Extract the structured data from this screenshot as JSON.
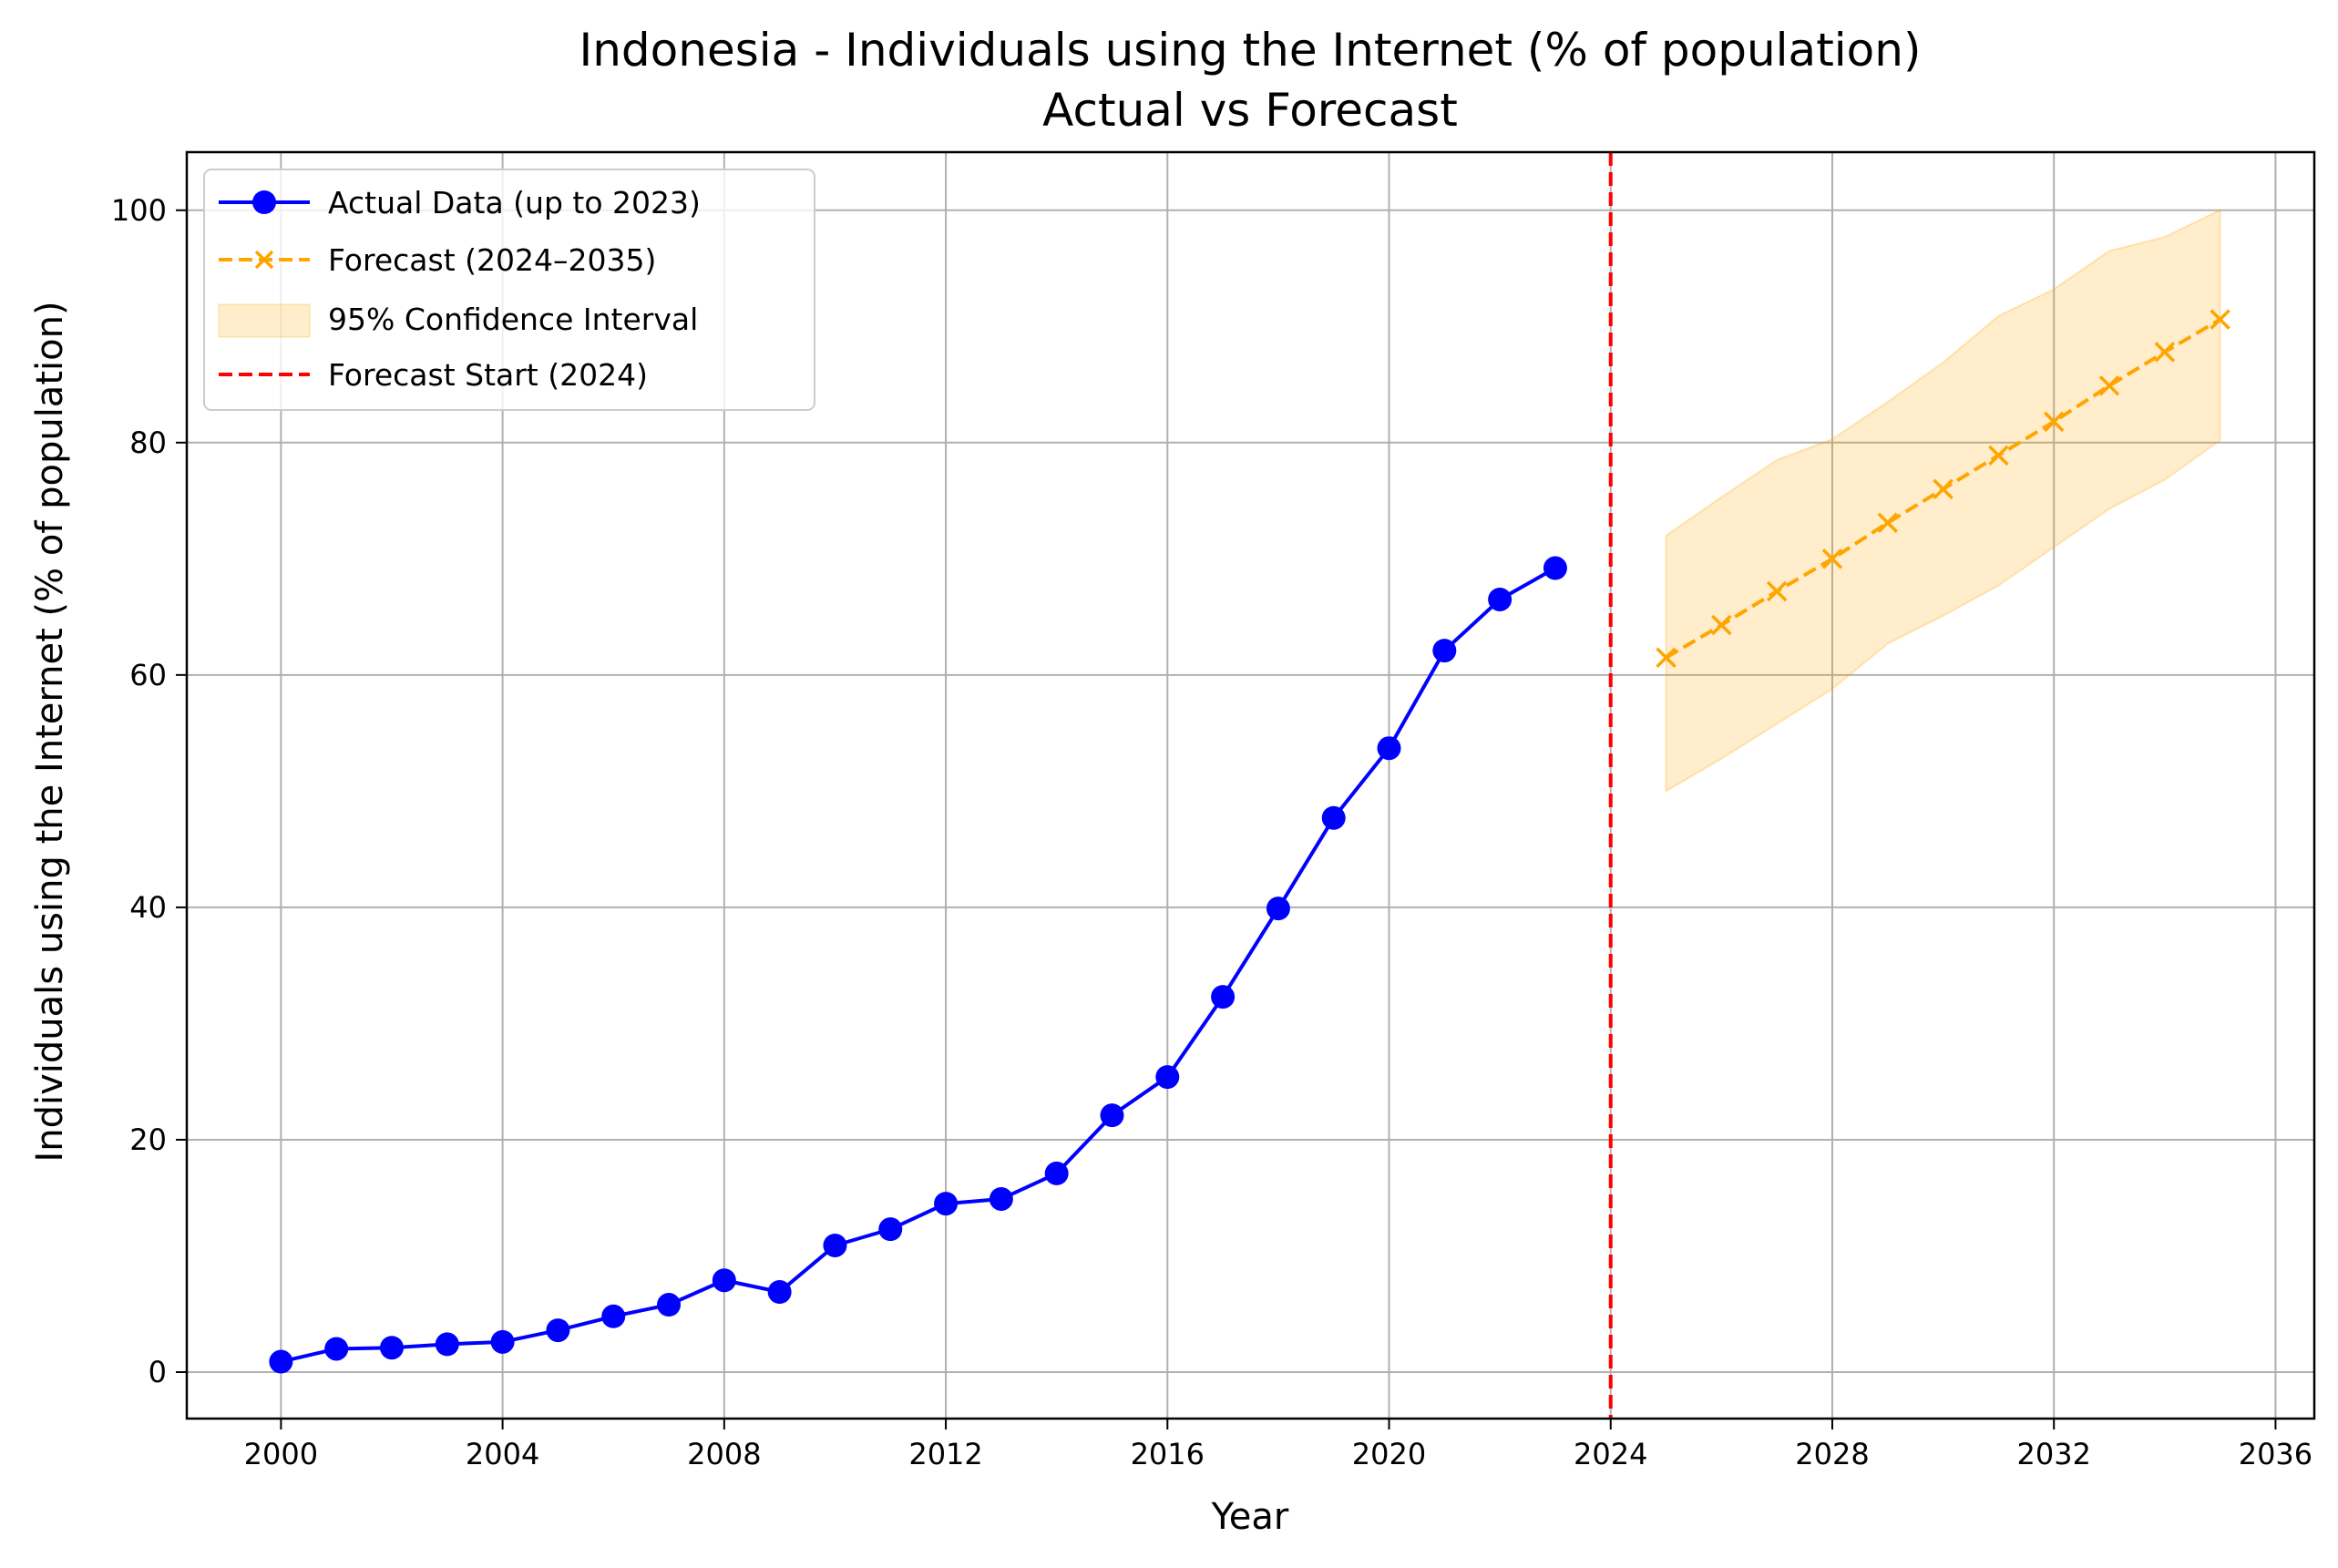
{
  "chart_data": {
    "type": "line",
    "title": "Indonesia - Individuals using the Internet (% of population)",
    "subtitle": "Actual vs Forecast",
    "xlabel": "Year",
    "ylabel": "Individuals using the Internet (% of population)",
    "xlim": [
      1998.3,
      2036.7
    ],
    "ylim": [
      -4,
      105
    ],
    "xticks": [
      2000,
      2004,
      2008,
      2012,
      2016,
      2020,
      2024,
      2028,
      2032,
      2036
    ],
    "yticks": [
      0,
      20,
      40,
      60,
      80,
      100
    ],
    "grid": true,
    "legend_position": "top-left",
    "series": [
      {
        "name": "Actual Data (up to 2023)",
        "color": "#0000ff",
        "marker": "circle",
        "line_style": "solid",
        "x": [
          2000,
          2001,
          2002,
          2003,
          2004,
          2005,
          2006,
          2007,
          2008,
          2009,
          2010,
          2011,
          2012,
          2013,
          2014,
          2015,
          2016,
          2017,
          2018,
          2019,
          2020,
          2021,
          2022,
          2023
        ],
        "y": [
          0.9,
          2.0,
          2.1,
          2.4,
          2.6,
          3.6,
          4.8,
          5.8,
          7.9,
          6.9,
          10.9,
          12.3,
          14.5,
          14.9,
          17.1,
          22.1,
          25.4,
          32.3,
          39.9,
          47.7,
          53.7,
          62.1,
          66.5,
          69.2
        ]
      },
      {
        "name": "Forecast (2024–2035)",
        "color": "#ffa500",
        "marker": "x",
        "line_style": "dashed",
        "x": [
          2025,
          2026,
          2027,
          2028,
          2029,
          2030,
          2031,
          2032,
          2033,
          2034,
          2035
        ],
        "y": [
          61.5,
          64.3,
          67.2,
          70.0,
          73.1,
          76.0,
          78.9,
          81.8,
          84.9,
          87.8,
          90.6
        ]
      }
    ],
    "confidence_interval": {
      "name": "95% Confidence Interval",
      "color": "#ffa500",
      "x": [
        2025,
        2026,
        2027,
        2028,
        2029,
        2030,
        2031,
        2032,
        2033,
        2034,
        2035
      ],
      "lower": [
        50.0,
        52.8,
        55.8,
        58.8,
        62.7,
        65.1,
        67.7,
        71.0,
        74.3,
        76.8,
        80.2
      ],
      "upper": [
        72.0,
        75.3,
        78.5,
        80.3,
        83.5,
        86.9,
        90.9,
        93.2,
        96.5,
        97.7,
        100.0
      ]
    },
    "reference_line": {
      "name": "Forecast Start (2024)",
      "x": 2024,
      "color": "#ff0000",
      "line_style": "dashed"
    }
  }
}
